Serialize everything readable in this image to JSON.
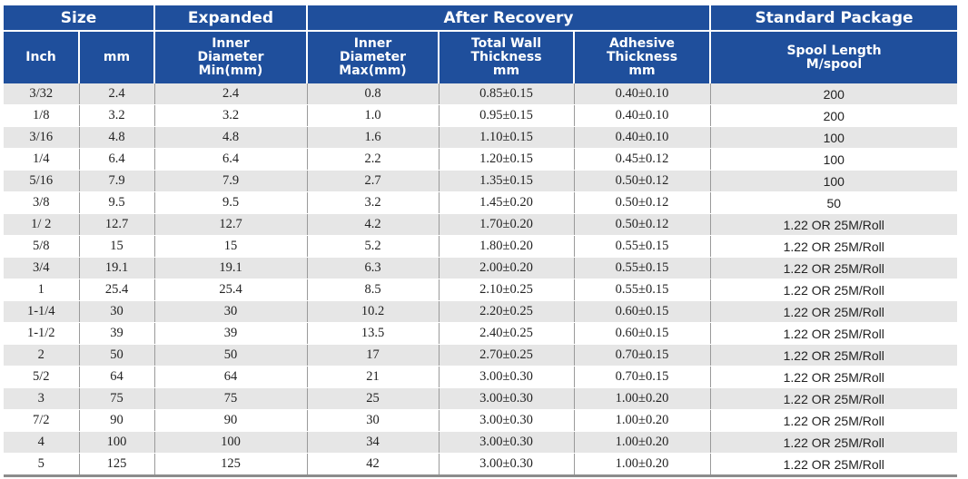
{
  "header": {
    "groups": {
      "size": "Size",
      "expanded": "Expanded",
      "after_recovery": "After Recovery",
      "standard_package": "Standard Package"
    },
    "columns": {
      "inch": "Inch",
      "mm": "mm",
      "inner_min": "Inner\nDiameter\nMin(mm)",
      "inner_max": "Inner\nDiameter\nMax(mm)",
      "total_wall": "Total Wall\nThickness\nmm",
      "adhesive": "Adhesive\nThickness\nmm",
      "spool": "Spool Length\nM/spool"
    }
  },
  "rows": [
    {
      "inch": "3/32",
      "mm": "2.4",
      "inner_min": "2.4",
      "inner_max": "0.8",
      "total_wall": "0.85±0.15",
      "adhesive": "0.40±0.10",
      "spool": "200"
    },
    {
      "inch": "1/8",
      "mm": "3.2",
      "inner_min": "3.2",
      "inner_max": "1.0",
      "total_wall": "0.95±0.15",
      "adhesive": "0.40±0.10",
      "spool": "200"
    },
    {
      "inch": "3/16",
      "mm": "4.8",
      "inner_min": "4.8",
      "inner_max": "1.6",
      "total_wall": "1.10±0.15",
      "adhesive": "0.40±0.10",
      "spool": "100"
    },
    {
      "inch": "1/4",
      "mm": "6.4",
      "inner_min": "6.4",
      "inner_max": "2.2",
      "total_wall": "1.20±0.15",
      "adhesive": "0.45±0.12",
      "spool": "100"
    },
    {
      "inch": "5/16",
      "mm": "7.9",
      "inner_min": "7.9",
      "inner_max": "2.7",
      "total_wall": "1.35±0.15",
      "adhesive": "0.50±0.12",
      "spool": "100"
    },
    {
      "inch": "3/8",
      "mm": "9.5",
      "inner_min": "9.5",
      "inner_max": "3.2",
      "total_wall": "1.45±0.20",
      "adhesive": "0.50±0.12",
      "spool": "50"
    },
    {
      "inch": "1/ 2",
      "mm": "12.7",
      "inner_min": "12.7",
      "inner_max": "4.2",
      "total_wall": "1.70±0.20",
      "adhesive": "0.50±0.12",
      "spool": "1.22 OR 25M/Roll"
    },
    {
      "inch": "5/8",
      "mm": "15",
      "inner_min": "15",
      "inner_max": "5.2",
      "total_wall": "1.80±0.20",
      "adhesive": "0.55±0.15",
      "spool": "1.22 OR 25M/Roll"
    },
    {
      "inch": "3/4",
      "mm": "19.1",
      "inner_min": "19.1",
      "inner_max": "6.3",
      "total_wall": "2.00±0.20",
      "adhesive": "0.55±0.15",
      "spool": "1.22 OR 25M/Roll"
    },
    {
      "inch": "1",
      "mm": "25.4",
      "inner_min": "25.4",
      "inner_max": "8.5",
      "total_wall": "2.10±0.25",
      "adhesive": "0.55±0.15",
      "spool": "1.22 OR 25M/Roll"
    },
    {
      "inch": "1-1/4",
      "mm": "30",
      "inner_min": "30",
      "inner_max": "10.2",
      "total_wall": "2.20±0.25",
      "adhesive": "0.60±0.15",
      "spool": "1.22 OR 25M/Roll"
    },
    {
      "inch": "1-1/2",
      "mm": "39",
      "inner_min": "39",
      "inner_max": "13.5",
      "total_wall": "2.40±0.25",
      "adhesive": "0.60±0.15",
      "spool": "1.22 OR 25M/Roll"
    },
    {
      "inch": "2",
      "mm": "50",
      "inner_min": "50",
      "inner_max": "17",
      "total_wall": "2.70±0.25",
      "adhesive": "0.70±0.15",
      "spool": "1.22 OR 25M/Roll"
    },
    {
      "inch": "5/2",
      "mm": "64",
      "inner_min": "64",
      "inner_max": "21",
      "total_wall": "3.00±0.30",
      "adhesive": "0.70±0.15",
      "spool": "1.22 OR 25M/Roll"
    },
    {
      "inch": "3",
      "mm": "75",
      "inner_min": "75",
      "inner_max": "25",
      "total_wall": "3.00±0.30",
      "adhesive": "1.00±0.20",
      "spool": "1.22 OR 25M/Roll"
    },
    {
      "inch": "7/2",
      "mm": "90",
      "inner_min": "90",
      "inner_max": "30",
      "total_wall": "3.00±0.30",
      "adhesive": "1.00±0.20",
      "spool": "1.22 OR 25M/Roll"
    },
    {
      "inch": "4",
      "mm": "100",
      "inner_min": "100",
      "inner_max": "34",
      "total_wall": "3.00±0.30",
      "adhesive": "1.00±0.20",
      "spool": "1.22 OR 25M/Roll"
    },
    {
      "inch": "5",
      "mm": "125",
      "inner_min": "125",
      "inner_max": "42",
      "total_wall": "3.00±0.30",
      "adhesive": "1.00±0.20",
      "spool": "1.22 OR 25M/Roll"
    }
  ],
  "colors": {
    "header_bg": "#1f4f9c",
    "header_text": "#ffffff",
    "stripe": "#e6e6e6"
  }
}
